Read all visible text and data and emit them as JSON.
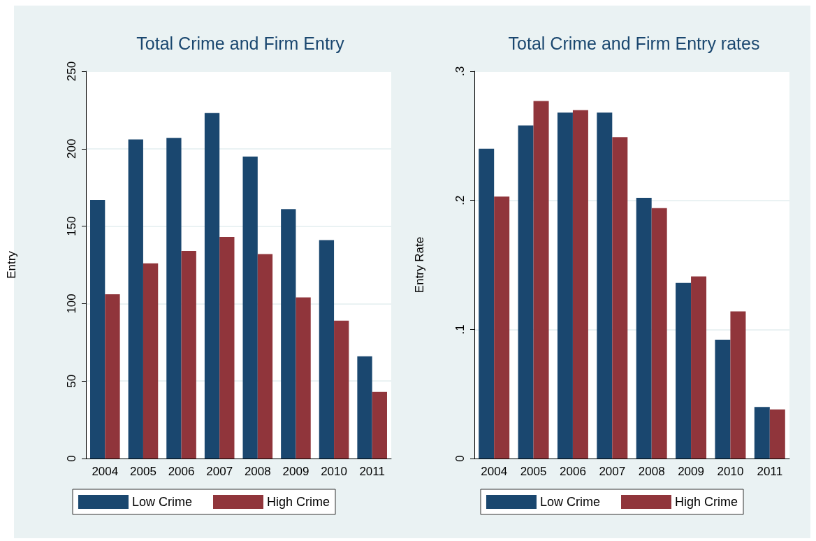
{
  "chart_data": [
    {
      "type": "bar",
      "title": "Total Crime and Firm Entry",
      "ylabel": "Entry",
      "categories": [
        "2004",
        "2005",
        "2006",
        "2007",
        "2008",
        "2009",
        "2010",
        "2011"
      ],
      "series": [
        {
          "name": "Low Crime",
          "color": "#1a476f",
          "values": [
            167,
            206,
            207,
            223,
            195,
            161,
            141,
            66
          ]
        },
        {
          "name": "High Crime",
          "color": "#90353b",
          "values": [
            106,
            126,
            134,
            143,
            132,
            104,
            89,
            43
          ]
        }
      ],
      "ylim": [
        0,
        250
      ],
      "yticks": [
        0,
        50,
        100,
        150,
        200,
        250
      ],
      "grid": "y",
      "legend": "bottom"
    },
    {
      "type": "bar",
      "title": "Total Crime and Firm Entry rates",
      "ylabel": "Entry Rate",
      "categories": [
        "2004",
        "2005",
        "2006",
        "2007",
        "2008",
        "2009",
        "2010",
        "2011"
      ],
      "series": [
        {
          "name": "Low Crime",
          "color": "#1a476f",
          "values": [
            0.24,
            0.258,
            0.268,
            0.268,
            0.202,
            0.136,
            0.092,
            0.04
          ]
        },
        {
          "name": "High Crime",
          "color": "#90353b",
          "values": [
            0.203,
            0.277,
            0.27,
            0.249,
            0.194,
            0.141,
            0.114,
            0.038
          ]
        }
      ],
      "ylim": [
        0,
        0.3
      ],
      "yticks": [
        0,
        {
          "value": 0.1,
          "label": ".1"
        },
        {
          "value": 0.2,
          "label": ".2"
        },
        {
          "value": 0.3,
          "label": ".3"
        }
      ],
      "grid": "y",
      "legend": "bottom"
    }
  ]
}
